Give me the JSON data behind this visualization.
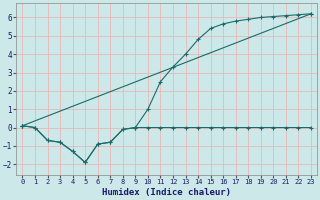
{
  "xlabel": "Humidex (Indice chaleur)",
  "xlim": [
    -0.5,
    23.5
  ],
  "ylim": [
    -2.6,
    6.8
  ],
  "xticks": [
    0,
    1,
    2,
    3,
    4,
    5,
    6,
    7,
    8,
    9,
    10,
    11,
    12,
    13,
    14,
    15,
    16,
    17,
    18,
    19,
    20,
    21,
    22,
    23
  ],
  "yticks": [
    -2,
    -1,
    0,
    1,
    2,
    3,
    4,
    5,
    6
  ],
  "bg_color": "#cce8e8",
  "line_color": "#1a6b6b",
  "grid_color": "#e8b8b8",
  "line1_x": [
    0,
    1,
    2,
    3,
    4,
    5,
    6,
    7,
    8,
    9,
    10,
    11,
    12,
    13,
    14,
    15,
    16,
    17,
    18,
    19,
    20,
    21,
    22,
    23
  ],
  "line1_y": [
    0.1,
    0.0,
    -0.7,
    -0.8,
    -1.3,
    -1.9,
    -0.9,
    -0.8,
    -0.1,
    0.0,
    1.0,
    2.5,
    3.3,
    4.0,
    4.8,
    5.4,
    5.65,
    5.8,
    5.9,
    6.0,
    6.05,
    6.1,
    6.15,
    6.2
  ],
  "line2_x": [
    0,
    1,
    2,
    3,
    4,
    5,
    6,
    7,
    8,
    9,
    10,
    11,
    12,
    13,
    14,
    15,
    16,
    17,
    18,
    19,
    20,
    21,
    22,
    23
  ],
  "line2_y": [
    0.1,
    0.0,
    -0.7,
    -0.8,
    -1.3,
    -1.9,
    -0.9,
    -0.8,
    -0.1,
    0.0,
    0.0,
    0.0,
    0.0,
    0.0,
    0.0,
    0.0,
    0.0,
    0.0,
    0.0,
    0.0,
    0.0,
    0.0,
    0.0,
    0.0
  ],
  "line3_x": [
    0,
    23
  ],
  "line3_y": [
    0.1,
    6.2
  ]
}
